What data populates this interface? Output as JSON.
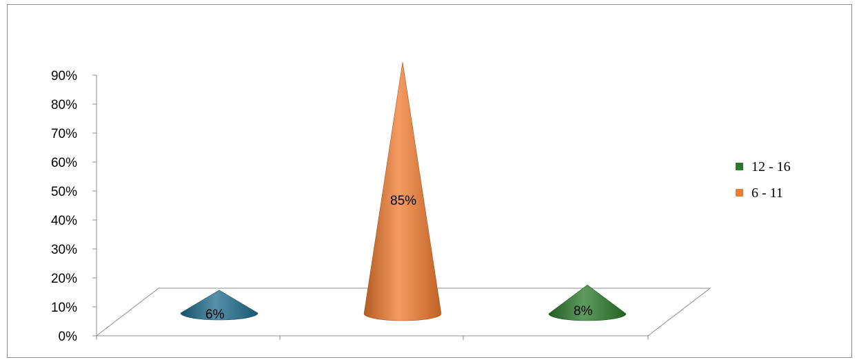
{
  "chart_data": {
    "type": "3d-cone",
    "categories": [
      "",
      "",
      ""
    ],
    "series": [
      {
        "name": "",
        "values": [
          6,
          85,
          8
        ]
      }
    ],
    "bar_colors": [
      "#1f6b8c",
      "#f07a2e",
      "#2a7a2a"
    ],
    "data_labels": [
      "6%",
      "85%",
      "8%"
    ],
    "yticks": [
      "0%",
      "10%",
      "20%",
      "30%",
      "40%",
      "50%",
      "60%",
      "70%",
      "80%",
      "90%"
    ],
    "ylim": [
      0,
      90
    ],
    "legend": {
      "position": "right",
      "entries": [
        {
          "label": "12 - 16",
          "color": "#2a7a2a"
        },
        {
          "label": "6 - 11",
          "color": "#f07a2e"
        }
      ]
    }
  }
}
